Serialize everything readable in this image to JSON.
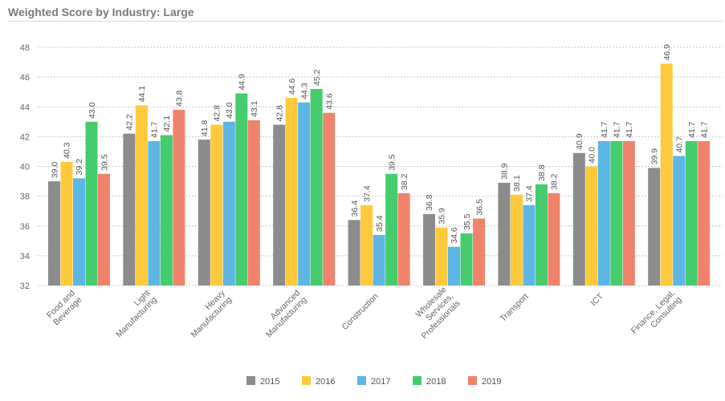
{
  "title": "Weighted Score by Industry: Large",
  "colors": {
    "2015": "#8c8c8c",
    "2016": "#ffc93c",
    "2017": "#5db6e4",
    "2018": "#45cc6e",
    "2019": "#f0836c",
    "grid": "#c8c8c8",
    "axis_text": "#666666"
  },
  "chart_data": {
    "type": "bar",
    "title": "Weighted Score by Industry: Large",
    "categories": [
      [
        "Food and",
        "Beverage"
      ],
      [
        "Light",
        "Manufacturing"
      ],
      [
        "Heavy",
        "Manufacturing"
      ],
      [
        "Advanced",
        "Manufacturing"
      ],
      [
        "Construction"
      ],
      [
        "Wholesale",
        "Services,",
        "Professionals"
      ],
      [
        "Transport"
      ],
      [
        "ICT"
      ],
      [
        "Finance, Legal,",
        "Consulting"
      ]
    ],
    "series": [
      {
        "name": "2015",
        "values": [
          39.0,
          42.2,
          41.8,
          42.8,
          36.4,
          36.8,
          38.9,
          40.9,
          39.9
        ]
      },
      {
        "name": "2016",
        "values": [
          40.3,
          44.1,
          42.8,
          44.6,
          37.4,
          35.9,
          38.1,
          40.0,
          46.9
        ]
      },
      {
        "name": "2017",
        "values": [
          39.2,
          41.7,
          43.0,
          44.3,
          35.4,
          34.6,
          37.4,
          41.7,
          40.7
        ]
      },
      {
        "name": "2018",
        "values": [
          43.0,
          42.1,
          44.9,
          45.2,
          39.5,
          35.5,
          38.8,
          41.7,
          41.7
        ]
      },
      {
        "name": "2019",
        "values": [
          39.5,
          43.8,
          43.1,
          43.6,
          38.2,
          36.5,
          38.2,
          41.7,
          41.7
        ]
      }
    ],
    "ylim": [
      32,
      48
    ],
    "yticks": [
      32,
      34,
      36,
      38,
      40,
      42,
      44,
      46,
      48
    ],
    "grid": true,
    "legend_position": "bottom-center",
    "data_labels": true
  }
}
